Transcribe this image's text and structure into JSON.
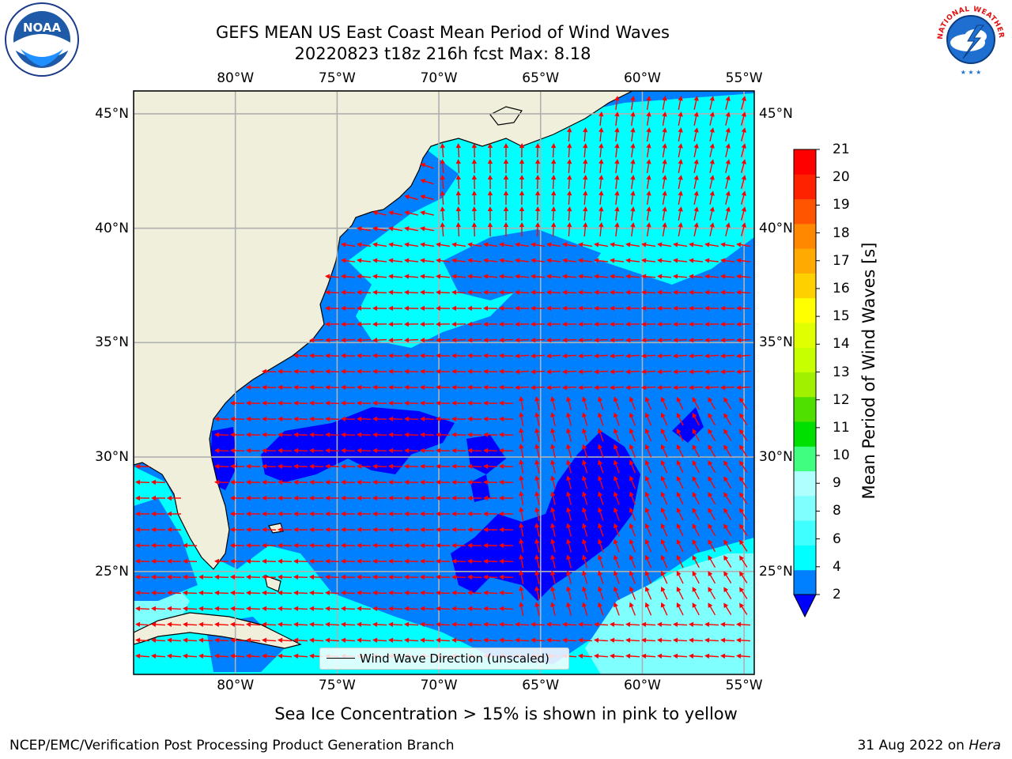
{
  "title": {
    "line1": "GEFS MEAN US East Coast Mean Period of Wind Waves",
    "line2": "20220823 t18z 216h fcst   Max: 8.18"
  },
  "map": {
    "lon_range": [
      -85,
      -54.5
    ],
    "lat_range": [
      20.5,
      46
    ],
    "lon_ticks": [
      "80°W",
      "75°W",
      "70°W",
      "65°W",
      "60°W",
      "55°W"
    ],
    "lat_ticks": [
      "45°N",
      "40°N",
      "35°N",
      "30°N",
      "25°N"
    ],
    "land_color": "#efefdc",
    "ocean_color": "#0080ff",
    "grid": true
  },
  "legend": {
    "label": "Wind Wave Direction (unscaled)",
    "placement": "bottom-center"
  },
  "colorbar": {
    "label": "Mean Period of Wind Waves [s]",
    "ticks": [
      "21",
      "20",
      "19",
      "18",
      "17",
      "16",
      "15",
      "14",
      "13",
      "12",
      "11",
      "10",
      "9",
      "8",
      "6",
      "4",
      "2"
    ],
    "colors": [
      "#0000ff",
      "#0080ff",
      "#00ffff",
      "#40ffff",
      "#80ffff",
      "#b0ffff",
      "#40ff80",
      "#00e000",
      "#50e000",
      "#a0f000",
      "#c8ff00",
      "#e0ff00",
      "#ffff00",
      "#ffd000",
      "#ffaa00",
      "#ff8800",
      "#ff5500",
      "#ff2200",
      "#ff0000"
    ]
  },
  "arrows": {
    "color": "#ff0000"
  },
  "logos": {
    "left": "NOAA",
    "right_ring": "NATIONAL WEATHER SERVICE"
  },
  "footer": {
    "ice_note": "Sea Ice Concentration > 15% is shown in pink to yellow",
    "branch": "NCEP/EMC/Verification Post Processing Product Generation Branch",
    "date": "31 Aug 2022 on ",
    "machine": "Hera"
  }
}
